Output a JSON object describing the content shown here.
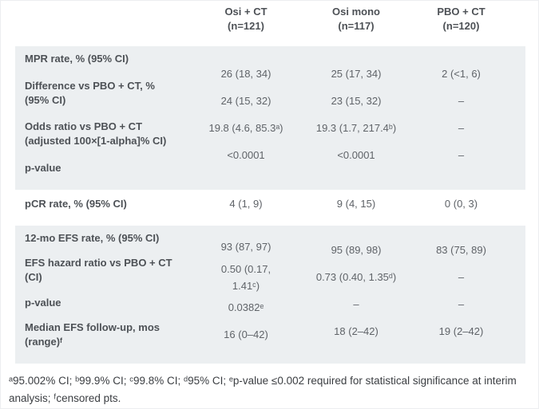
{
  "columns": [
    {
      "name": "Osi + CT",
      "n": "(n=121)"
    },
    {
      "name": "Osi mono",
      "n": "(n=117)"
    },
    {
      "name": "PBO + CT",
      "n": "(n=120)"
    }
  ],
  "sections": [
    {
      "rows": [
        {
          "label": "MPR rate, % (95% CI)",
          "values": [
            "26 (18, 34)",
            "25 (17, 34)",
            "2 (<1, 6)"
          ]
        },
        {
          "label": "Difference vs PBO + CT, %\n(95% CI)",
          "values": [
            "24 (15, 32)",
            "23 (15, 32)",
            "–"
          ]
        },
        {
          "label": "Odds ratio vs PBO + CT\n(adjusted 100×[1-alpha]% CI)",
          "values": [
            "19.8 (4.6, 85.3ᵃ)",
            "19.3 (1.7, 217.4ᵇ)",
            "–"
          ]
        },
        {
          "label": "p-value",
          "values": [
            "<0.0001",
            "<0.0001",
            "–"
          ]
        }
      ]
    },
    {
      "rows": [
        {
          "label": "pCR rate, % (95% CI)",
          "values": [
            "4 (1, 9)",
            "9 (4, 15)",
            "0 (0, 3)"
          ]
        }
      ]
    },
    {
      "rows": [
        {
          "label": "12-mo EFS rate, % (95% CI)",
          "values": [
            "93 (87, 97)",
            "95 (89, 98)",
            "83 (75, 89)"
          ]
        },
        {
          "label": "EFS hazard ratio vs PBO + CT\n(CI)",
          "values": [
            "0.50 (0.17,\n1.41ᶜ)",
            "0.73 (0.40, 1.35ᵈ)",
            "–"
          ]
        },
        {
          "label": "p-value",
          "values": [
            "0.0382ᵉ",
            "–",
            "–"
          ]
        },
        {
          "label": "Median EFS follow-up, mos\n(range)ᶠ",
          "values": [
            "16 (0–42)",
            "18 (2–42)",
            "19 (2–42)"
          ]
        }
      ]
    }
  ],
  "footnote": "ᵃ95.002% CI; ᵇ99.9% CI; ᶜ99.8% CI; ᵈ95% CI; ᵉp-value ≤0.002 required for statistical significance at interim analysis; ᶠcensored pts.",
  "colors": {
    "band_bg": "#eceff1",
    "page_bg": "#ffffff",
    "label_text": "#4d5156",
    "value_text": "#5f6368",
    "footnote_text": "#3b3e42"
  }
}
